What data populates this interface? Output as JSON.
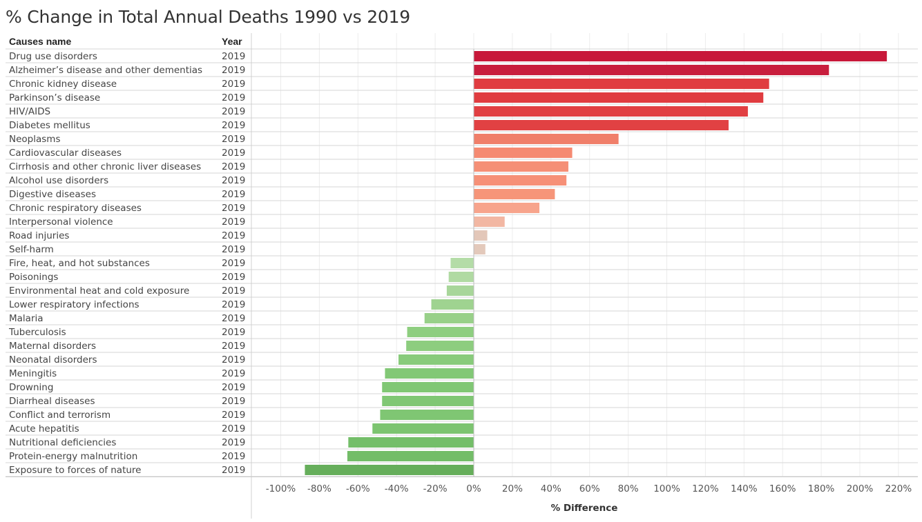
{
  "title": "% Change in Total Annual Deaths 1990 vs 2019",
  "headers": {
    "cause": "Causes name",
    "year": "Year"
  },
  "chart_data": {
    "type": "bar",
    "orientation": "horizontal",
    "title": "% Change in Total Annual Deaths 1990 vs 2019",
    "xlabel": "% Difference",
    "ylabel": "",
    "xlim": [
      -110,
      230
    ],
    "xticks": [
      -100,
      -80,
      -60,
      -40,
      -20,
      0,
      20,
      40,
      60,
      80,
      100,
      120,
      140,
      160,
      180,
      200,
      220
    ],
    "xtick_labels": [
      "-100%",
      "-80%",
      "-60%",
      "-40%",
      "-20%",
      "0%",
      "20%",
      "40%",
      "60%",
      "80%",
      "100%",
      "120%",
      "140%",
      "160%",
      "180%",
      "200%",
      "220%"
    ],
    "grid": true,
    "legend": "none",
    "rows": [
      {
        "cause": "Drug use disorders",
        "year": "2019",
        "value": 214,
        "color": "#c8183a"
      },
      {
        "cause": "Alzheimer’s disease and other dementias",
        "year": "2019",
        "value": 184,
        "color": "#c81e3d"
      },
      {
        "cause": "Chronic kidney disease",
        "year": "2019",
        "value": 153,
        "color": "#e03c40"
      },
      {
        "cause": "Parkinson’s disease",
        "year": "2019",
        "value": 150,
        "color": "#e03c40"
      },
      {
        "cause": "HIV/AIDS",
        "year": "2019",
        "value": 142,
        "color": "#e13f42"
      },
      {
        "cause": "Diabetes mellitus",
        "year": "2019",
        "value": 132,
        "color": "#e14143"
      },
      {
        "cause": "Neoplasms",
        "year": "2019",
        "value": 75,
        "color": "#f07f6a"
      },
      {
        "cause": "Cardiovascular diseases",
        "year": "2019",
        "value": 51,
        "color": "#f58a72"
      },
      {
        "cause": "Cirrhosis and other chronic liver diseases",
        "year": "2019",
        "value": 49,
        "color": "#f58f76"
      },
      {
        "cause": "Alcohol use disorders",
        "year": "2019",
        "value": 48,
        "color": "#f69077"
      },
      {
        "cause": "Digestive diseases",
        "year": "2019",
        "value": 42,
        "color": "#f69579"
      },
      {
        "cause": "Chronic respiratory diseases",
        "year": "2019",
        "value": 34,
        "color": "#f7a48c"
      },
      {
        "cause": "Interpersonal violence",
        "year": "2019",
        "value": 16,
        "color": "#f2b7a3"
      },
      {
        "cause": "Road injuries",
        "year": "2019",
        "value": 7,
        "color": "#e3c7b9"
      },
      {
        "cause": "Self-harm",
        "year": "2019",
        "value": 6,
        "color": "#e3c9bb"
      },
      {
        "cause": "Fire, heat, and hot substances",
        "year": "2019",
        "value": -12,
        "color": "#b4dca7"
      },
      {
        "cause": "Poisonings",
        "year": "2019",
        "value": -13,
        "color": "#b0daa2"
      },
      {
        "cause": "Environmental heat and cold exposure",
        "year": "2019",
        "value": -14,
        "color": "#a8d69a"
      },
      {
        "cause": "Lower respiratory infections",
        "year": "2019",
        "value": -22,
        "color": "#9fd390"
      },
      {
        "cause": "Malaria",
        "year": "2019",
        "value": -25.5,
        "color": "#98d089"
      },
      {
        "cause": "Tuberculosis",
        "year": "2019",
        "value": -34.5,
        "color": "#8ece80"
      },
      {
        "cause": "Maternal disorders",
        "year": "2019",
        "value": -35,
        "color": "#8dcd7f"
      },
      {
        "cause": "Neonatal disorders",
        "year": "2019",
        "value": -39,
        "color": "#88cb7b"
      },
      {
        "cause": "Meningitis",
        "year": "2019",
        "value": -46,
        "color": "#82c876"
      },
      {
        "cause": "Drowning",
        "year": "2019",
        "value": -47.5,
        "color": "#80c774"
      },
      {
        "cause": "Diarrheal diseases",
        "year": "2019",
        "value": -47.5,
        "color": "#80c774"
      },
      {
        "cause": "Conflict and terrorism",
        "year": "2019",
        "value": -48.5,
        "color": "#7fc673"
      },
      {
        "cause": "Acute hepatitis",
        "year": "2019",
        "value": -52.5,
        "color": "#7cc470"
      },
      {
        "cause": "Nutritional deficiencies",
        "year": "2019",
        "value": -65,
        "color": "#74be69"
      },
      {
        "cause": "Protein-energy malnutrition",
        "year": "2019",
        "value": -65.5,
        "color": "#73bd68"
      },
      {
        "cause": "Exposure to forces of nature",
        "year": "2019",
        "value": -87.5,
        "color": "#66ae5b"
      }
    ]
  }
}
